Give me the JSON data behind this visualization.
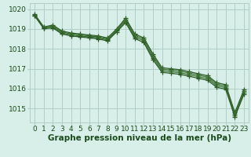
{
  "title": "Graphe pression niveau de la mer (hPa)",
  "xlim": [
    -0.5,
    23.5
  ],
  "ylim": [
    1014.3,
    1020.3
  ],
  "yticks": [
    1015,
    1016,
    1017,
    1018,
    1019,
    1020
  ],
  "xtick_labels": [
    "0",
    "1",
    "2",
    "3",
    "4",
    "5",
    "6",
    "7",
    "8",
    "9",
    "10",
    "11",
    "12",
    "13",
    "14",
    "15",
    "16",
    "17",
    "18",
    "19",
    "20",
    "21",
    "22",
    "23"
  ],
  "background_color": "#d8eee8",
  "grid_color": "#b0cfc5",
  "line_color_dark": "#2d5a27",
  "line_color_mid": "#3a7030",
  "series": [
    [
      1019.75,
      1019.1,
      1019.2,
      1018.9,
      1018.8,
      1018.75,
      1018.7,
      1018.65,
      1018.55,
      1019.0,
      1019.55,
      1018.75,
      1018.55,
      1017.75,
      1017.05,
      1017.0,
      1016.95,
      1016.85,
      1016.75,
      1016.65,
      1016.3,
      1016.2,
      1014.8,
      1015.95
    ],
    [
      1019.72,
      1019.08,
      1019.15,
      1018.85,
      1018.75,
      1018.7,
      1018.65,
      1018.6,
      1018.5,
      1018.95,
      1019.48,
      1018.68,
      1018.48,
      1017.65,
      1016.98,
      1016.93,
      1016.88,
      1016.78,
      1016.68,
      1016.58,
      1016.23,
      1016.13,
      1014.72,
      1015.88
    ],
    [
      1019.68,
      1019.05,
      1019.1,
      1018.8,
      1018.7,
      1018.65,
      1018.6,
      1018.55,
      1018.45,
      1018.9,
      1019.4,
      1018.6,
      1018.4,
      1017.55,
      1016.9,
      1016.85,
      1016.8,
      1016.7,
      1016.6,
      1016.5,
      1016.15,
      1016.05,
      1014.65,
      1015.8
    ],
    [
      1019.65,
      1019.02,
      1019.05,
      1018.75,
      1018.65,
      1018.6,
      1018.55,
      1018.5,
      1018.4,
      1018.85,
      1019.32,
      1018.52,
      1018.32,
      1017.45,
      1016.82,
      1016.77,
      1016.72,
      1016.62,
      1016.52,
      1016.42,
      1016.07,
      1015.97,
      1014.57,
      1015.72
    ]
  ],
  "title_color": "#1a4a1a",
  "title_fontsize": 7.5,
  "tick_fontsize": 6.5,
  "marker": "+",
  "marker_size": 4,
  "linewidth": 0.9
}
